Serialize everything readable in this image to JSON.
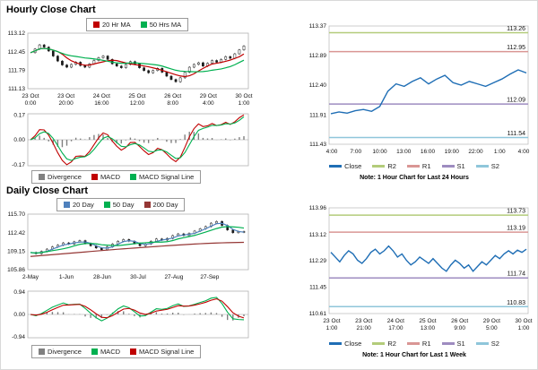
{
  "hourly": {
    "title": "Hourly Close Chart",
    "legend_price": [
      {
        "label": "20 Hr MA",
        "color": "#c00000"
      },
      {
        "label": "50 Hrs MA",
        "color": "#00b050"
      }
    ],
    "legend_macd": [
      {
        "label": "Divergence",
        "color": "#808080"
      },
      {
        "label": "MACD",
        "color": "#c00000"
      },
      {
        "label": "MACD Signal Line",
        "color": "#00b050"
      }
    ]
  },
  "daily": {
    "title": "Daily Close Chart",
    "legend_price": [
      {
        "label": "20 Day",
        "color": "#4f81bd"
      },
      {
        "label": "50 Day",
        "color": "#00b050"
      },
      {
        "label": "200 Day",
        "color": "#953735"
      }
    ],
    "legend_macd": [
      {
        "label": "Divergence",
        "color": "#808080"
      },
      {
        "label": "MACD",
        "color": "#00b050"
      },
      {
        "label": "MACD Signal Line",
        "color": "#c00000"
      }
    ]
  },
  "day24": {
    "note": "Note: 1 Hour Chart for Last 24 Hours",
    "legend": [
      {
        "label": "Close",
        "color": "#1f6eb5"
      },
      {
        "label": "R2",
        "color": "#b3cc7a"
      },
      {
        "label": "R1",
        "color": "#d99694"
      },
      {
        "label": "S1",
        "color": "#9e8cc0"
      },
      {
        "label": "S2",
        "color": "#8fc6da"
      }
    ]
  },
  "week": {
    "note": "Note: 1 Hour Chart for Last 1 Week",
    "legend": [
      {
        "label": "Close",
        "color": "#1f6eb5"
      },
      {
        "label": "R2",
        "color": "#b3cc7a"
      },
      {
        "label": "R1",
        "color": "#d99694"
      },
      {
        "label": "S1",
        "color": "#9e8cc0"
      },
      {
        "label": "S2",
        "color": "#8fc6da"
      }
    ]
  },
  "chart_data": [
    {
      "id": "hourly_price",
      "type": "candlestick",
      "title": "Hourly Close Chart",
      "ylim": [
        111.13,
        113.12
      ],
      "y_ticks": [
        "113.12",
        "112.45",
        "111.79",
        "111.13"
      ],
      "x_ticks": [
        [
          "23 Oct",
          "0:00"
        ],
        [
          "23 Oct",
          "20:00"
        ],
        [
          "24 Oct",
          "16:00"
        ],
        [
          "25 Oct",
          "12:00"
        ],
        [
          "26 Oct",
          "8:00"
        ],
        [
          "29 Oct",
          "4:00"
        ],
        [
          "30 Oct",
          "1:00"
        ]
      ],
      "x_tick_span": 1,
      "closes": [
        112.42,
        112.55,
        112.7,
        112.62,
        112.48,
        112.3,
        112.12,
        111.98,
        111.9,
        112.0,
        112.08,
        111.96,
        111.9,
        112.02,
        112.14,
        112.24,
        112.3,
        112.18,
        112.02,
        111.94,
        111.88,
        112.0,
        112.1,
        112.02,
        111.88,
        111.78,
        111.7,
        111.78,
        111.86,
        111.72,
        111.58,
        111.46,
        111.38,
        111.52,
        111.72,
        111.9,
        112.0,
        112.06,
        111.94,
        112.04,
        112.14,
        112.08,
        112.18,
        112.28,
        112.22,
        112.38,
        112.52,
        112.66
      ],
      "ma": [
        {
          "label": "20 Hr MA",
          "smooth": 6,
          "color": "#c00000"
        },
        {
          "label": "50 Hrs MA",
          "smooth": 14,
          "color": "#00b050"
        }
      ]
    },
    {
      "id": "hourly_macd",
      "type": "macd",
      "ylim": [
        -0.17,
        0.17
      ],
      "y_ticks": [
        "0.17",
        "0.00",
        "-0.17"
      ],
      "source": "hourly_price",
      "params": [
        4,
        9,
        3
      ],
      "macd_color": "#c00000",
      "signal_color": "#00b050",
      "divergence_color": "#808080"
    },
    {
      "id": "daily_price",
      "type": "candlestick",
      "title": "Daily Close Chart",
      "ylim": [
        105.86,
        115.7
      ],
      "y_ticks": [
        "115.70",
        "112.42",
        "109.15",
        "105.86"
      ],
      "x_ticks": [
        [
          "2-May"
        ],
        [
          "1-Jun"
        ],
        [
          "28-Jun"
        ],
        [
          "30-Jul"
        ],
        [
          "27-Aug"
        ],
        [
          "27-Sep"
        ]
      ],
      "x_tick_span": 0.84,
      "closes": [
        108.9,
        108.7,
        109.1,
        109.5,
        109.9,
        110.2,
        110.6,
        110.4,
        110.8,
        111.0,
        110.5,
        110.1,
        109.7,
        109.4,
        109.9,
        110.4,
        110.9,
        111.2,
        110.9,
        110.5,
        110.1,
        110.4,
        110.9,
        111.3,
        111.1,
        111.4,
        111.9,
        112.2,
        111.9,
        112.3,
        112.7,
        113.1,
        113.5,
        114.1,
        114.4,
        113.7,
        112.9,
        112.4,
        112.6,
        112.5
      ],
      "ma": [
        {
          "label": "20 Day",
          "smooth": 3,
          "color": "#4f81bd"
        },
        {
          "label": "50 Day",
          "smooth": 7,
          "color": "#00b050"
        },
        {
          "label": "200 Day",
          "color": "#953735",
          "values": [
            108.2,
            108.28,
            108.36,
            108.44,
            108.52,
            108.6,
            108.68,
            108.76,
            108.84,
            108.92,
            109.0,
            109.08,
            109.16,
            109.24,
            109.32,
            109.4,
            109.48,
            109.55,
            109.62,
            109.69,
            109.76,
            109.83,
            109.9,
            109.97,
            110.04,
            110.1,
            110.16,
            110.22,
            110.28,
            110.34,
            110.4,
            110.45,
            110.5,
            110.54,
            110.58,
            110.61,
            110.64,
            110.66,
            110.68,
            110.7
          ]
        }
      ]
    },
    {
      "id": "daily_macd",
      "type": "macd",
      "ylim": [
        -0.94,
        0.94
      ],
      "y_ticks": [
        "0.94",
        "0.00",
        "-0.94"
      ],
      "source": "daily_price",
      "params": [
        3,
        7,
        3
      ],
      "macd_color": "#00b050",
      "signal_color": "#c00000",
      "divergence_color": "#808080"
    },
    {
      "id": "close_24h",
      "type": "line",
      "ylim": [
        111.43,
        113.37
      ],
      "y_ticks": [
        "113.37",
        "112.89",
        "112.40",
        "111.91",
        "111.43"
      ],
      "x_ticks": [
        "4:00",
        "7:00",
        "10:00",
        "13:00",
        "16:00",
        "19:00",
        "22:00",
        "1:00",
        "4:00"
      ],
      "color": "#1f6eb5",
      "close": [
        111.93,
        111.96,
        111.94,
        111.98,
        112.0,
        111.97,
        112.05,
        112.3,
        112.42,
        112.38,
        112.46,
        112.52,
        112.42,
        112.5,
        112.56,
        112.44,
        112.4,
        112.46,
        112.42,
        112.38,
        112.44,
        112.5,
        112.58,
        112.65,
        112.6
      ],
      "levels": [
        {
          "name": "R2",
          "value": 113.26,
          "label": "113.26",
          "color": "#b3cc7a"
        },
        {
          "name": "R1",
          "value": 112.95,
          "label": "112.95",
          "color": "#d99694"
        },
        {
          "name": "S1",
          "value": 112.09,
          "label": "112.09",
          "color": "#9e8cc0"
        },
        {
          "name": "S2",
          "value": 111.54,
          "label": "111.54",
          "color": "#8fc6da"
        }
      ]
    },
    {
      "id": "close_week",
      "type": "line",
      "ylim": [
        110.61,
        113.96
      ],
      "y_ticks": [
        "113.96",
        "113.12",
        "112.29",
        "111.45",
        "110.61"
      ],
      "x_ticks": [
        [
          "23 Oct",
          "1:00"
        ],
        [
          "23 Oct",
          "21:00"
        ],
        [
          "24 Oct",
          "17:00"
        ],
        [
          "25 Oct",
          "13:00"
        ],
        [
          "26 Oct",
          "9:00"
        ],
        [
          "29 Oct",
          "5:00"
        ],
        [
          "30 Oct",
          "1:00"
        ]
      ],
      "color": "#1f6eb5",
      "close": [
        112.55,
        112.4,
        112.25,
        112.45,
        112.6,
        112.5,
        112.3,
        112.2,
        112.35,
        112.55,
        112.65,
        112.5,
        112.6,
        112.75,
        112.6,
        112.4,
        112.5,
        112.3,
        112.15,
        112.25,
        112.4,
        112.3,
        112.2,
        112.35,
        112.2,
        112.05,
        111.95,
        112.15,
        112.3,
        112.2,
        112.05,
        112.15,
        111.95,
        112.1,
        112.25,
        112.15,
        112.3,
        112.45,
        112.35,
        112.5,
        112.6,
        112.5,
        112.62,
        112.55,
        112.65
      ],
      "levels": [
        {
          "name": "R2",
          "value": 113.73,
          "label": "113.73",
          "color": "#b3cc7a"
        },
        {
          "name": "R1",
          "value": 113.19,
          "label": "113.19",
          "color": "#d99694"
        },
        {
          "name": "S1",
          "value": 111.74,
          "label": "111.74",
          "color": "#9e8cc0"
        },
        {
          "name": "S2",
          "value": 110.83,
          "label": "110.83",
          "color": "#8fc6da"
        }
      ]
    }
  ]
}
